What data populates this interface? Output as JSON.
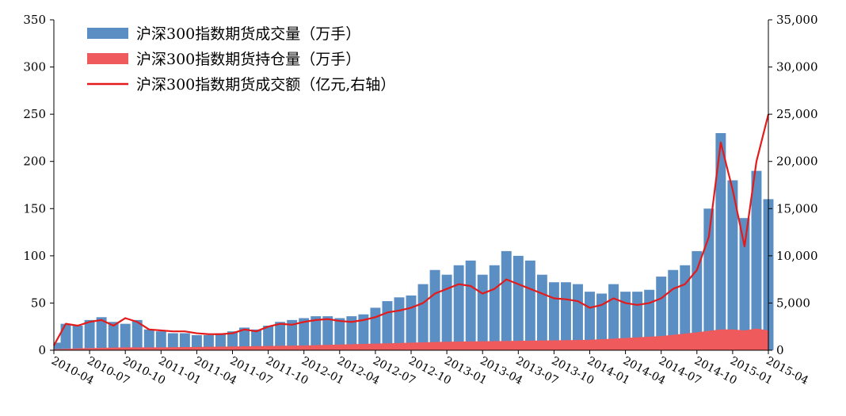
{
  "chart_data": {
    "type": "bar-line-combo",
    "x_start": "2010-04",
    "x_end": "2015-04",
    "x_tick_labels": [
      "2010-04",
      "2010-07",
      "2010-10",
      "2011-01",
      "2011-04",
      "2011-07",
      "2011-10",
      "2012-01",
      "2012-04",
      "2012-07",
      "2012-10",
      "2013-01",
      "2013-04",
      "2013-07",
      "2013-10",
      "2014-01",
      "2014-04",
      "2014-07",
      "2014-10",
      "2015-01",
      "2015-04"
    ],
    "y_left": {
      "min": 0,
      "max": 350,
      "ticks": [
        "0",
        "50",
        "100",
        "150",
        "200",
        "250",
        "300",
        "350"
      ]
    },
    "y_right": {
      "min": 0,
      "max": 35000,
      "ticks": [
        "0",
        "5,000",
        "10,000",
        "15,000",
        "20,000",
        "25,000",
        "30,000",
        "35,000"
      ]
    },
    "legend_position": "top-left",
    "series": [
      {
        "name": "沪深300指数期货成交量（万手）",
        "kind": "bar",
        "axis": "left",
        "color": "#5b8ec2",
        "points": [
          [
            "2010-04",
            8
          ],
          [
            "2010-05",
            28
          ],
          [
            "2010-06",
            26
          ],
          [
            "2010-07",
            32
          ],
          [
            "2010-08",
            35
          ],
          [
            "2010-09",
            30
          ],
          [
            "2010-10",
            28
          ],
          [
            "2010-11",
            32
          ],
          [
            "2010-12",
            22
          ],
          [
            "2011-01",
            20
          ],
          [
            "2011-02",
            18
          ],
          [
            "2011-03",
            18
          ],
          [
            "2011-04",
            16
          ],
          [
            "2011-05",
            16
          ],
          [
            "2011-06",
            18
          ],
          [
            "2011-07",
            20
          ],
          [
            "2011-08",
            24
          ],
          [
            "2011-09",
            22
          ],
          [
            "2011-10",
            26
          ],
          [
            "2011-11",
            30
          ],
          [
            "2011-12",
            32
          ],
          [
            "2012-01",
            34
          ],
          [
            "2012-02",
            36
          ],
          [
            "2012-03",
            36
          ],
          [
            "2012-04",
            34
          ],
          [
            "2012-05",
            36
          ],
          [
            "2012-06",
            38
          ],
          [
            "2012-07",
            45
          ],
          [
            "2012-08",
            52
          ],
          [
            "2012-09",
            56
          ],
          [
            "2012-10",
            58
          ],
          [
            "2012-11",
            70
          ],
          [
            "2012-12",
            85
          ],
          [
            "2013-01",
            80
          ],
          [
            "2013-02",
            90
          ],
          [
            "2013-03",
            95
          ],
          [
            "2013-04",
            80
          ],
          [
            "2013-05",
            90
          ],
          [
            "2013-06",
            105
          ],
          [
            "2013-07",
            100
          ],
          [
            "2013-08",
            95
          ],
          [
            "2013-09",
            80
          ],
          [
            "2013-10",
            72
          ],
          [
            "2013-11",
            72
          ],
          [
            "2013-12",
            70
          ],
          [
            "2014-01",
            62
          ],
          [
            "2014-02",
            60
          ],
          [
            "2014-03",
            70
          ],
          [
            "2014-04",
            62
          ],
          [
            "2014-05",
            62
          ],
          [
            "2014-06",
            64
          ],
          [
            "2014-07",
            78
          ],
          [
            "2014-08",
            85
          ],
          [
            "2014-09",
            90
          ],
          [
            "2014-10",
            105
          ],
          [
            "2014-11",
            150
          ],
          [
            "2014-12",
            230
          ],
          [
            "2015-01",
            180
          ],
          [
            "2015-02",
            140
          ],
          [
            "2015-03",
            190
          ],
          [
            "2015-04",
            160
          ]
        ]
      },
      {
        "name": "沪深300指数期货持仓量（万手）",
        "kind": "area",
        "axis": "left",
        "color": "#ef5a5d",
        "points": [
          [
            "2010-04",
            1
          ],
          [
            "2010-06",
            2
          ],
          [
            "2010-10",
            3
          ],
          [
            "2011-01",
            3
          ],
          [
            "2011-07",
            4
          ],
          [
            "2012-01",
            5
          ],
          [
            "2012-07",
            7
          ],
          [
            "2013-01",
            9
          ],
          [
            "2013-07",
            10
          ],
          [
            "2014-01",
            11
          ],
          [
            "2014-07",
            15
          ],
          [
            "2014-10",
            19
          ],
          [
            "2014-12",
            22
          ],
          [
            "2015-01",
            22
          ],
          [
            "2015-02",
            21
          ],
          [
            "2015-03",
            23
          ],
          [
            "2015-04",
            21
          ]
        ]
      },
      {
        "name": "沪深300指数期货成交额（亿元,右轴）",
        "kind": "line",
        "axis": "right",
        "color": "#e31b1b",
        "points": [
          [
            "2010-04",
            500
          ],
          [
            "2010-05",
            2800
          ],
          [
            "2010-06",
            2600
          ],
          [
            "2010-07",
            3000
          ],
          [
            "2010-08",
            3200
          ],
          [
            "2010-09",
            2600
          ],
          [
            "2010-10",
            3400
          ],
          [
            "2010-11",
            3000
          ],
          [
            "2010-12",
            2200
          ],
          [
            "2011-01",
            2100
          ],
          [
            "2011-02",
            2000
          ],
          [
            "2011-03",
            2000
          ],
          [
            "2011-04",
            1800
          ],
          [
            "2011-05",
            1700
          ],
          [
            "2011-06",
            1700
          ],
          [
            "2011-07",
            1800
          ],
          [
            "2011-08",
            2200
          ],
          [
            "2011-09",
            2000
          ],
          [
            "2011-10",
            2500
          ],
          [
            "2011-11",
            2800
          ],
          [
            "2011-12",
            2700
          ],
          [
            "2012-01",
            3000
          ],
          [
            "2012-02",
            3200
          ],
          [
            "2012-03",
            3300
          ],
          [
            "2012-04",
            3100
          ],
          [
            "2012-05",
            3000
          ],
          [
            "2012-06",
            3200
          ],
          [
            "2012-07",
            3500
          ],
          [
            "2012-08",
            4000
          ],
          [
            "2012-09",
            4200
          ],
          [
            "2012-10",
            4500
          ],
          [
            "2012-11",
            5000
          ],
          [
            "2012-12",
            6000
          ],
          [
            "2013-01",
            6500
          ],
          [
            "2013-02",
            7000
          ],
          [
            "2013-03",
            6800
          ],
          [
            "2013-04",
            6000
          ],
          [
            "2013-05",
            6500
          ],
          [
            "2013-06",
            7500
          ],
          [
            "2013-07",
            7000
          ],
          [
            "2013-08",
            6500
          ],
          [
            "2013-09",
            6000
          ],
          [
            "2013-10",
            5500
          ],
          [
            "2013-11",
            5400
          ],
          [
            "2013-12",
            5200
          ],
          [
            "2014-01",
            4500
          ],
          [
            "2014-02",
            4800
          ],
          [
            "2014-03",
            5500
          ],
          [
            "2014-04",
            5000
          ],
          [
            "2014-05",
            4800
          ],
          [
            "2014-06",
            5000
          ],
          [
            "2014-07",
            5500
          ],
          [
            "2014-08",
            6500
          ],
          [
            "2014-09",
            7000
          ],
          [
            "2014-10",
            8500
          ],
          [
            "2014-11",
            12000
          ],
          [
            "2014-12",
            22000
          ],
          [
            "2015-01",
            17000
          ],
          [
            "2015-02",
            11000
          ],
          [
            "2015-03",
            20000
          ],
          [
            "2015-04",
            25000
          ]
        ]
      }
    ]
  }
}
